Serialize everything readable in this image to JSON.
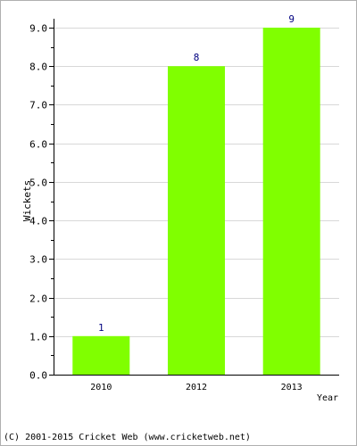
{
  "chart_data": {
    "type": "bar",
    "title": "",
    "xlabel": "Year",
    "ylabel": "Wickets",
    "categories": [
      "2010",
      "2012",
      "2013"
    ],
    "values": [
      1,
      8,
      9
    ],
    "data_labels": [
      "1",
      "8",
      "9"
    ],
    "ylim": [
      0,
      9
    ],
    "yticks": [
      "0.0",
      "1.0",
      "2.0",
      "3.0",
      "4.0",
      "5.0",
      "6.0",
      "7.0",
      "8.0",
      "9.0"
    ],
    "grid": true,
    "legend": "none",
    "bar_color": "#80ff00",
    "label_color": "#000080"
  },
  "footer": {
    "copyright": "(C) 2001-2015 Cricket Web (www.cricketweb.net)"
  }
}
